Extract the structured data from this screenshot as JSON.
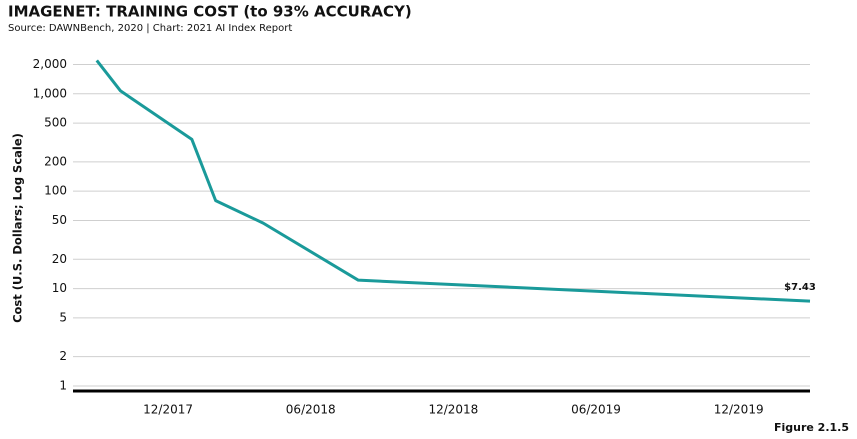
{
  "chart_data": {
    "type": "line",
    "title": "IMAGENET: TRAINING COST (to 93% ACCURACY)",
    "subtitle": "Source: DAWNBench, 2020 | Chart: 2021 AI Index Report",
    "y_label": "Cost (U.S. Dollars; Log Scale)",
    "figure_label": "Figure 2.1.5",
    "x": [
      "2017-09",
      "2017-10",
      "2018-01",
      "2018-02",
      "2018-04",
      "2018-08",
      "2020-03"
    ],
    "series": [
      {
        "name": "Training cost",
        "color": "#1a9a9a",
        "values": [
          2200,
          1070,
          340,
          80,
          47,
          12.2,
          7.43
        ],
        "value_labels": [
          null,
          null,
          null,
          null,
          null,
          null,
          "$7.43"
        ]
      }
    ],
    "log_scale": true,
    "grid": true,
    "xlim": [
      "2017-08",
      "2020-03"
    ],
    "xticks": [
      {
        "value": "2017-12",
        "label": "12/2017"
      },
      {
        "value": "2018-06",
        "label": "06/2018"
      },
      {
        "value": "2018-12",
        "label": "12/2018"
      },
      {
        "value": "2019-06",
        "label": "06/2019"
      },
      {
        "value": "2019-12",
        "label": "12/2019"
      }
    ],
    "ylim": [
      1,
      2500
    ],
    "yticks": [
      1,
      2,
      5,
      10,
      20,
      50,
      100,
      200,
      500,
      {
        "value": 1000,
        "label": "1,000"
      },
      {
        "value": 2000,
        "label": "2,000"
      }
    ]
  }
}
